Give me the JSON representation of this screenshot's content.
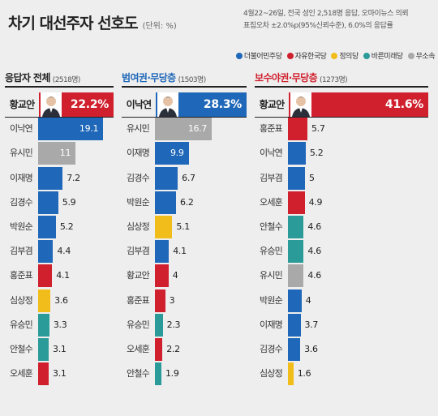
{
  "header": {
    "title": "차기 대선주자 선호도",
    "unit": "(단위: %)",
    "note_line1": "4월22~26일, 전국 성인 2,518명 응답, 오마이뉴스 의뢰",
    "note_line2": "표집오차 ±2.0%p(95%신뢰수준), 6.0%의 응답률"
  },
  "legend": [
    {
      "label": "더불어민주당",
      "color": "#1f67b8"
    },
    {
      "label": "자유한국당",
      "color": "#d0202e"
    },
    {
      "label": "정의당",
      "color": "#f1bd1a"
    },
    {
      "label": "바른미래당",
      "color": "#2a9b98"
    },
    {
      "label": "무소속",
      "color": "#a9a9a9"
    }
  ],
  "chart_data": [
    {
      "type": "bar",
      "title": "응답자 전체",
      "title_color": "#222222",
      "count": "(2518명)",
      "categories": [
        "황교안",
        "이낙연",
        "유시민",
        "이재명",
        "김경수",
        "박원순",
        "김부겸",
        "홍준표",
        "심상정",
        "유승민",
        "안철수",
        "오세훈"
      ],
      "values": [
        22.2,
        19.1,
        11,
        7.2,
        5.9,
        5.2,
        4.4,
        4.1,
        3.6,
        3.3,
        3.1,
        3.1
      ],
      "labels": [
        "22.2%",
        "19.1",
        "11",
        "7.2",
        "5.9",
        "5.2",
        "4.4",
        "4.1",
        "3.6",
        "3.3",
        "3.1",
        "3.1"
      ],
      "parties": [
        "kor",
        "dem",
        "ind",
        "dem",
        "dem",
        "dem",
        "dem",
        "kor",
        "jus",
        "bar",
        "bar",
        "kor"
      ],
      "xlim": [
        0,
        42
      ]
    },
    {
      "type": "bar",
      "title": "범여권·무당층",
      "title_color": "#1f67b8",
      "count": "(1503명)",
      "categories": [
        "이낙연",
        "유시민",
        "이재명",
        "김경수",
        "박원순",
        "심상정",
        "김부겸",
        "황교안",
        "홍준표",
        "유승민",
        "오세훈",
        "안철수"
      ],
      "values": [
        28.3,
        16.7,
        9.9,
        6.7,
        6.2,
        5.1,
        4.1,
        4,
        3,
        2.3,
        2.2,
        1.9
      ],
      "labels": [
        "28.3%",
        "16.7",
        "9.9",
        "6.7",
        "6.2",
        "5.1",
        "4.1",
        "4",
        "3",
        "2.3",
        "2.2",
        "1.9"
      ],
      "parties": [
        "dem",
        "ind",
        "dem",
        "dem",
        "dem",
        "jus",
        "dem",
        "kor",
        "kor",
        "bar",
        "kor",
        "bar"
      ],
      "xlim": [
        0,
        42
      ]
    },
    {
      "type": "bar",
      "title": "보수야권·무당층",
      "title_color": "#d0202e",
      "count": "(1273명)",
      "categories": [
        "황교안",
        "홍준표",
        "이낙연",
        "김부겸",
        "오세훈",
        "안철수",
        "유승민",
        "유시민",
        "박원순",
        "이재명",
        "김경수",
        "심상정"
      ],
      "values": [
        41.6,
        5.7,
        5.2,
        5,
        4.9,
        4.6,
        4.6,
        4.6,
        4,
        3.7,
        3.6,
        1.6
      ],
      "labels": [
        "41.6%",
        "5.7",
        "5.2",
        "5",
        "4.9",
        "4.6",
        "4.6",
        "4.6",
        "4",
        "3.7",
        "3.6",
        "1.6"
      ],
      "parties": [
        "kor",
        "kor",
        "dem",
        "dem",
        "kor",
        "bar",
        "bar",
        "ind",
        "dem",
        "dem",
        "dem",
        "jus"
      ],
      "xlim": [
        0,
        42
      ]
    }
  ],
  "party_colors": {
    "dem": "#1f67b8",
    "kor": "#d0202e",
    "jus": "#f1bd1a",
    "bar": "#2a9b98",
    "ind": "#a9a9a9"
  }
}
